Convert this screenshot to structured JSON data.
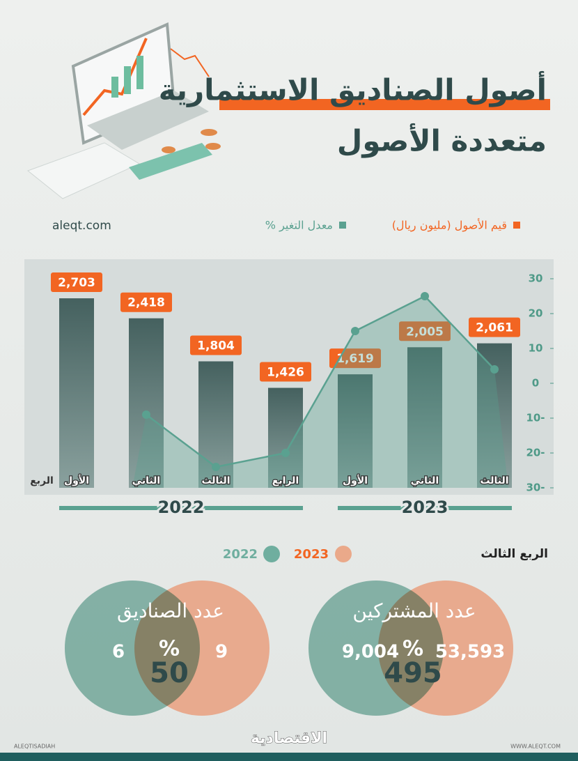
{
  "header": {
    "title": "أصول الصناديق الاستثمارية",
    "subtitle": "متعددة الأصول",
    "source": "aleqt.com"
  },
  "chart_data": {
    "type": "bar",
    "x_label": "الربع",
    "categories": [
      "الأول",
      "الثاني",
      "الثالث",
      "الرابع",
      "الأول",
      "الثاني",
      "الثالث"
    ],
    "groups": [
      "2022",
      "2023"
    ],
    "series": [
      {
        "name": "قيم الأصول (مليون ريال)",
        "color": "#f26522",
        "type": "bar",
        "values": [
          2703,
          2418,
          1804,
          1426,
          1619,
          2005,
          2061
        ],
        "value_labels": [
          "2,703",
          "2,418",
          "1,804",
          "1,426",
          "1,619",
          "2,005",
          "2,061"
        ]
      },
      {
        "name": "معدل التغير %",
        "color": "#5aa190",
        "type": "line",
        "axis": "y2",
        "values": [
          null,
          -9,
          -24,
          -20,
          15,
          25,
          4
        ]
      }
    ],
    "ylim": [
      0,
      3300
    ],
    "y2lim": [
      -30,
      30
    ],
    "y2ticks": [
      30,
      20,
      10,
      0,
      {
        "value": -10,
        "label": "10-"
      },
      {
        "value": -20,
        "label": "20-"
      },
      {
        "value": -30,
        "label": "30-"
      }
    ]
  },
  "comparison": {
    "title": "الربع الثالث",
    "legend": [
      "2023",
      "2022"
    ],
    "items": [
      {
        "label": "عدد الصناديق",
        "value_2022": "6",
        "value_2023": "9",
        "change": "50",
        "unit": "%"
      },
      {
        "label": "عدد المشتركين",
        "value_2022": "9,004",
        "value_2023": "53,593",
        "change": "495",
        "unit": "%"
      }
    ]
  },
  "footer": {
    "left": "ALEQTISADIAH",
    "center": "الاقتصادية",
    "right": "WWW.ALEQT.COM"
  }
}
